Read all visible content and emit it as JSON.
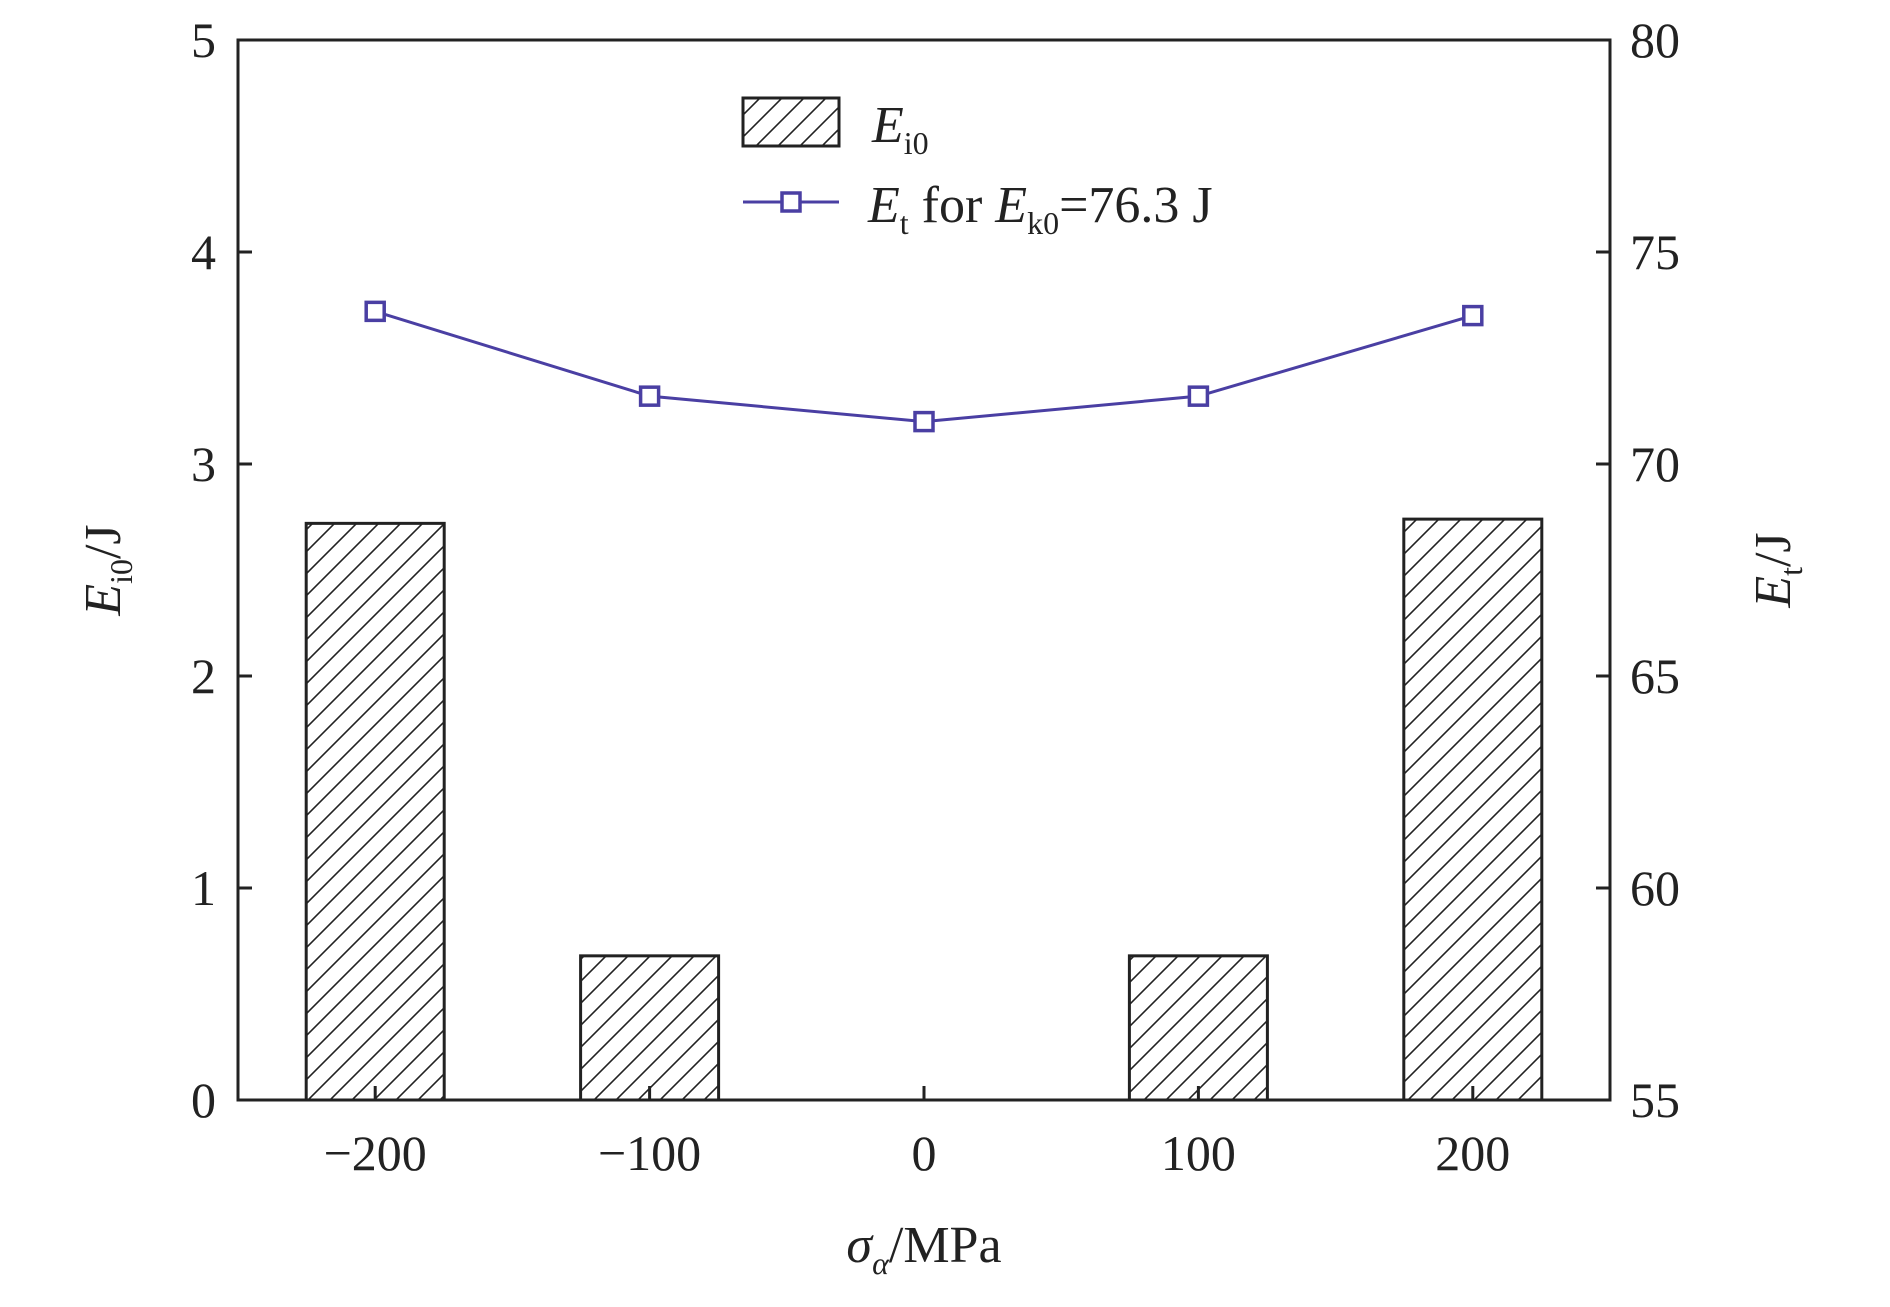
{
  "chart_data": {
    "type": "bar",
    "categories": [
      "−200",
      "−100",
      "0",
      "100",
      "200"
    ],
    "x": [
      -200,
      -100,
      0,
      100,
      200
    ],
    "xlabel": {
      "main": "σ",
      "sub": "α",
      "unit": "/MPa"
    },
    "xlim": [
      -250,
      250
    ],
    "xticks": [
      "−200",
      "−100",
      "0",
      "100",
      "200"
    ],
    "y_left": {
      "label": {
        "main": "E",
        "sub": "i0",
        "unit": "/J"
      },
      "lim": [
        0,
        5
      ],
      "ticks": [
        "0",
        "1",
        "2",
        "3",
        "4",
        "5"
      ]
    },
    "y_right": {
      "label": {
        "main": "E",
        "sub": "t",
        "unit": "/J"
      },
      "lim": [
        55,
        80
      ],
      "ticks": [
        "55",
        "60",
        "65",
        "70",
        "75",
        "80"
      ]
    },
    "series": [
      {
        "name": {
          "main": "E",
          "sub": "i0",
          "rest": ""
        },
        "type": "bar",
        "axis": "left",
        "pattern": "hatch",
        "values": [
          2.72,
          0.68,
          0,
          0.68,
          2.74
        ]
      },
      {
        "name": {
          "main": "E",
          "sub": "t",
          "rest": " for ",
          "main2": "E",
          "sub2": "k0",
          "rest2": "=76.3 J"
        },
        "type": "line",
        "axis": "right",
        "marker": "square",
        "color": "#4a3fa3",
        "values": [
          73.6,
          71.6,
          71.0,
          71.6,
          73.5
        ]
      }
    ],
    "legend_position": "top-center",
    "grid": false
  }
}
